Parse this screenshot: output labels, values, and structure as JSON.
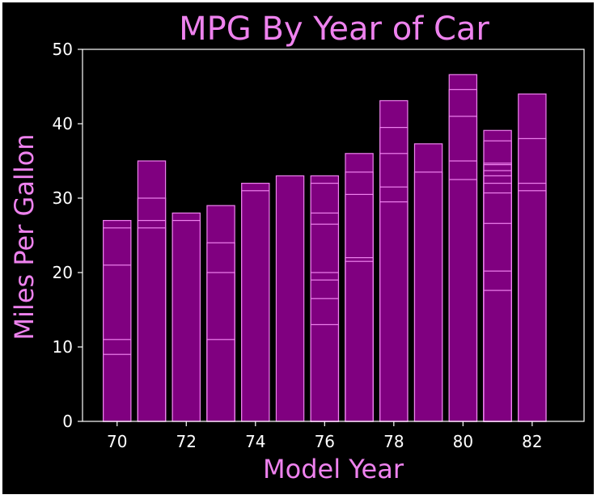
{
  "chart_data": {
    "type": "bar",
    "title": "MPG By Year of Car",
    "xlabel": "Model Year",
    "ylabel": "Miles Per Gallon",
    "xlim": [
      69,
      83.5
    ],
    "ylim": [
      0,
      50
    ],
    "xticks": [
      "70",
      "72",
      "74",
      "76",
      "78",
      "80",
      "82"
    ],
    "yticks": [
      "0",
      "10",
      "20",
      "30",
      "40",
      "50"
    ],
    "grid": false,
    "bar_width": 0.8,
    "note": "overlapping bars per model year (one bar per car); visible segment boundaries are listed per year",
    "years": [
      {
        "x": 70,
        "values": [
          9,
          11,
          21,
          26,
          27
        ]
      },
      {
        "x": 71,
        "values": [
          26,
          27,
          30,
          35
        ]
      },
      {
        "x": 72,
        "values": [
          27,
          28
        ]
      },
      {
        "x": 73,
        "values": [
          11,
          20,
          24,
          29
        ]
      },
      {
        "x": 74,
        "values": [
          31,
          32
        ]
      },
      {
        "x": 75,
        "values": [
          33
        ]
      },
      {
        "x": 76,
        "values": [
          13,
          16.5,
          19,
          20,
          26.5,
          28,
          32,
          33
        ]
      },
      {
        "x": 77,
        "values": [
          21.5,
          22,
          30.5,
          33.5,
          36
        ]
      },
      {
        "x": 78,
        "values": [
          29.5,
          31.5,
          36,
          39.5,
          43.1
        ]
      },
      {
        "x": 79,
        "values": [
          33.5,
          37.3
        ]
      },
      {
        "x": 80,
        "values": [
          32.5,
          35,
          41,
          44.6,
          46.6
        ]
      },
      {
        "x": 81,
        "values": [
          17.6,
          20.2,
          26.6,
          30.7,
          32,
          33,
          33.7,
          34.5,
          34.7,
          37.7,
          39.1
        ]
      },
      {
        "x": 82,
        "values": [
          31,
          32,
          38,
          44
        ]
      }
    ],
    "colors": {
      "bar_fill": "#800080",
      "bar_edge": "#ee82ee",
      "title": "#ee82ee",
      "axis_label": "#ee82ee",
      "tick_text": "#ffffff",
      "axes_frame": "#ffffff",
      "background": "#000000"
    }
  }
}
